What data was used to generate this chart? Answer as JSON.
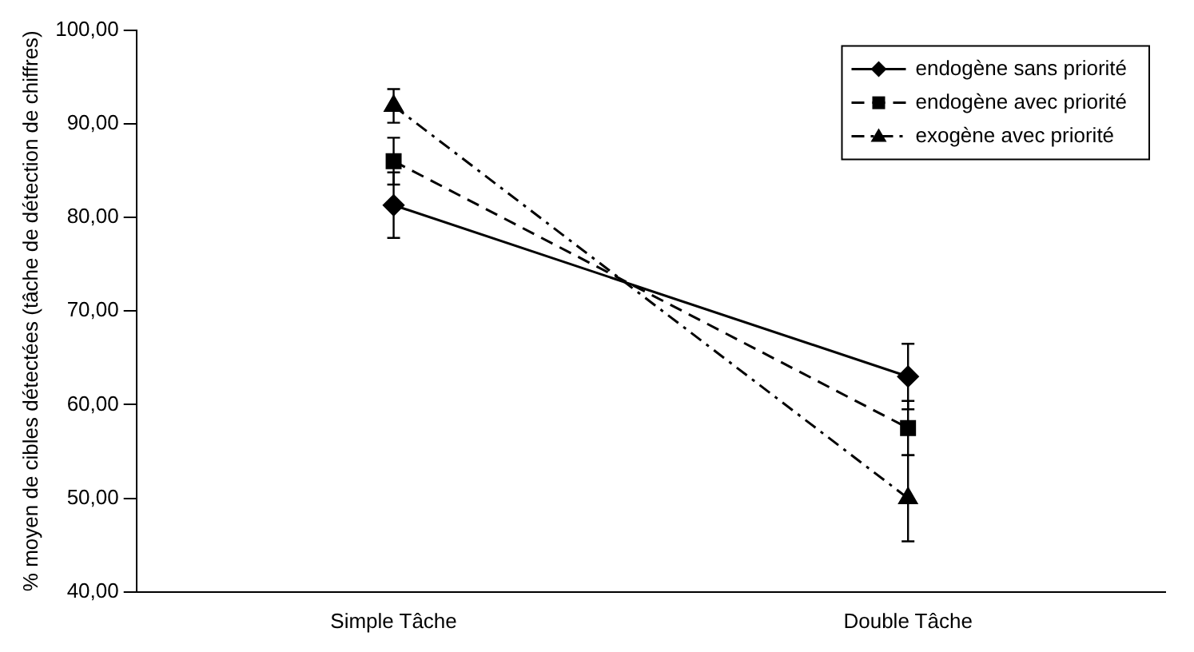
{
  "chart_data": {
    "type": "line",
    "ylabel": "% moyen de cibles détectées (tâche de détection de chiffres)",
    "categories": [
      "Simple Tâche",
      "Double Tâche"
    ],
    "series": [
      {
        "name": "endogène sans priorité",
        "color": "#000000",
        "values": [
          81.3,
          63.0
        ],
        "errors": [
          3.5,
          3.5
        ],
        "marker": "diamond",
        "line_style": "solid"
      },
      {
        "name": "endogène avec priorité",
        "color": "#000000",
        "values": [
          86.0,
          57.5
        ],
        "errors": [
          2.5,
          2.9
        ],
        "marker": "square",
        "line_style": "dashed"
      },
      {
        "name": "exogène avec priorité",
        "color": "#000000",
        "values": [
          91.9,
          50.0
        ],
        "errors": [
          1.8,
          4.6
        ],
        "marker": "triangle",
        "line_style": "dashdot"
      }
    ],
    "ylim": [
      40,
      100
    ],
    "yticks": [
      {
        "value": 40,
        "label": "40,00"
      },
      {
        "value": 50,
        "label": "50,00"
      },
      {
        "value": 60,
        "label": "60,00"
      },
      {
        "value": 70,
        "label": "70,00"
      },
      {
        "value": 80,
        "label": "80,00"
      },
      {
        "value": 90,
        "label": "90,00"
      },
      {
        "value": 100,
        "label": "100,00"
      }
    ],
    "grid": false,
    "legend": "top right"
  }
}
